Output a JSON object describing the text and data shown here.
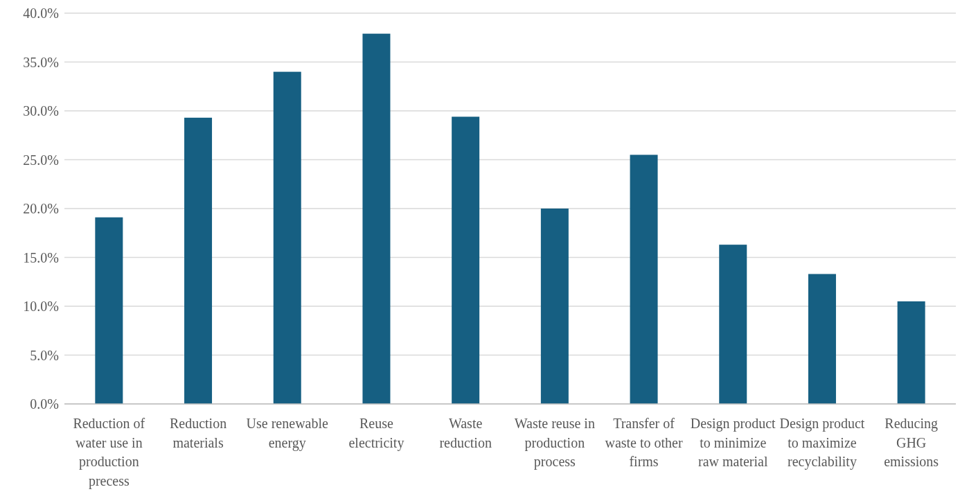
{
  "chart_data": {
    "type": "bar",
    "categories": [
      "Reduction of water use in production precess",
      "Reduction materials",
      "Use renewable energy",
      "Reuse electricity",
      "Waste reduction",
      "Waste reuse in production process",
      "Transfer of waste to other firms",
      "Design product to minimize raw material",
      "Design product to maximize recyclability",
      "Reducing GHG emissions"
    ],
    "values": [
      19.1,
      29.3,
      34.0,
      37.9,
      29.4,
      20.0,
      25.5,
      16.3,
      13.3,
      10.5
    ],
    "color": "#165f82",
    "ylim": [
      0,
      40
    ],
    "yticks": [
      {
        "value": 0,
        "label": "0.0%"
      },
      {
        "value": 5,
        "label": "5.0%"
      },
      {
        "value": 10,
        "label": "10.0%"
      },
      {
        "value": 15,
        "label": "15.0%"
      },
      {
        "value": 20,
        "label": "20.0%"
      },
      {
        "value": 25,
        "label": "25.0%"
      },
      {
        "value": 30,
        "label": "30.0%"
      },
      {
        "value": 35,
        "label": "35.0%"
      },
      {
        "value": 40,
        "label": "40.0%"
      }
    ],
    "grid": "y"
  }
}
